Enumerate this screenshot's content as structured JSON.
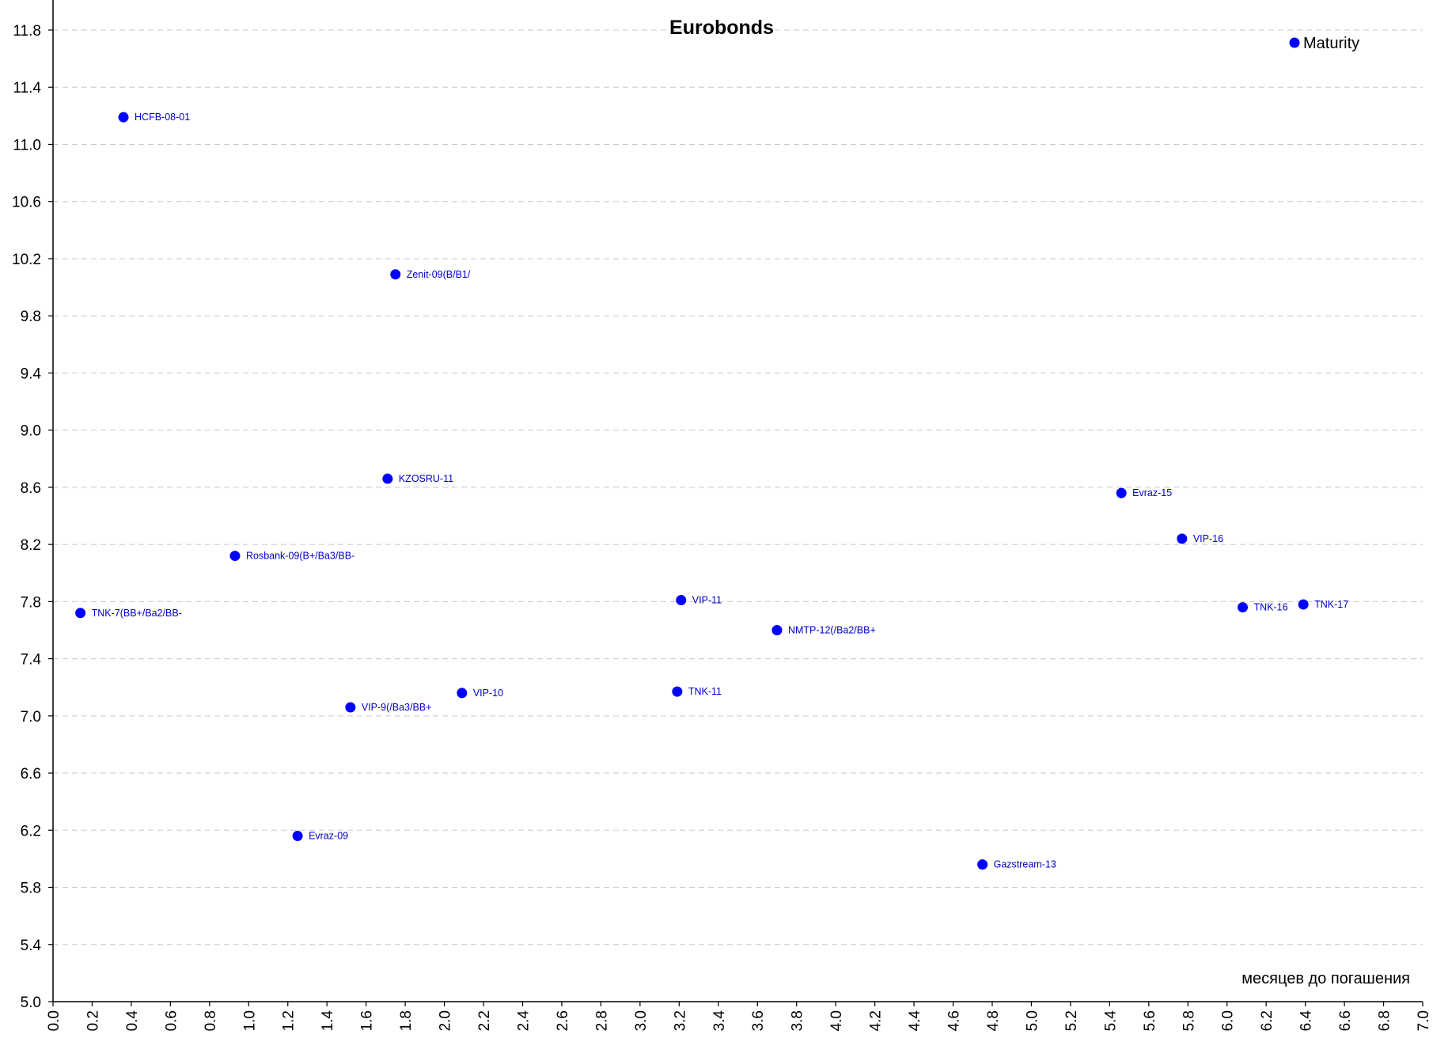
{
  "chart_data": {
    "type": "scatter",
    "title": "Eurobonds",
    "xlabel": "месяцев до погашения",
    "ylabel": "",
    "xlim": [
      0,
      7
    ],
    "ylim": [
      5,
      11.8
    ],
    "x_ticks": [
      "0.0",
      "0.2",
      "0.4",
      "0.6",
      "0.8",
      "1.0",
      "1.2",
      "1.4",
      "1.6",
      "1.8",
      "2.0",
      "2.2",
      "2.4",
      "2.6",
      "2.8",
      "3.0",
      "3.2",
      "3.4",
      "3.6",
      "3.8",
      "4.0",
      "4.2",
      "4.4",
      "4.6",
      "4.8",
      "5.0",
      "5.2",
      "5.4",
      "5.6",
      "5.8",
      "6.0",
      "6.2",
      "6.4",
      "6.6",
      "6.8",
      "7.0"
    ],
    "y_ticks": [
      "5.0",
      "5.4",
      "5.8",
      "6.2",
      "6.6",
      "7.0",
      "7.4",
      "7.8",
      "8.2",
      "8.6",
      "9.0",
      "9.4",
      "9.8",
      "10.2",
      "10.6",
      "11.0",
      "11.4",
      "11.8"
    ],
    "grid": "horizontal dashed",
    "legend": {
      "position": "top-right",
      "entries": [
        "Maturity"
      ]
    },
    "series": [
      {
        "name": "Maturity",
        "color": "#0000ff",
        "points": [
          {
            "label": "HCFB-08-01",
            "x": 0.36,
            "y": 11.19
          },
          {
            "label": "Zenit-09(B/B1/",
            "x": 1.75,
            "y": 10.09
          },
          {
            "label": "KZOSRU-11",
            "x": 1.71,
            "y": 8.66
          },
          {
            "label": "Rosbank-09(B+/Ba3/BB-",
            "x": 0.93,
            "y": 8.12
          },
          {
            "label": "TNK-7(BB+/Ba2/BB-",
            "x": 0.14,
            "y": 7.72
          },
          {
            "label": "VIP-9(/Ba3/BB+",
            "x": 1.52,
            "y": 7.06
          },
          {
            "label": "VIP-10",
            "x": 2.09,
            "y": 7.16
          },
          {
            "label": "Evraz-09",
            "x": 1.25,
            "y": 6.16
          },
          {
            "label": "VIP-11",
            "x": 3.21,
            "y": 7.81
          },
          {
            "label": "TNK-11",
            "x": 3.19,
            "y": 7.17
          },
          {
            "label": "NMTP-12(/Ba2/BB+",
            "x": 3.7,
            "y": 7.6
          },
          {
            "label": "Gazstream-13",
            "x": 4.75,
            "y": 5.96
          },
          {
            "label": "Evraz-15",
            "x": 5.46,
            "y": 8.56
          },
          {
            "label": "VIP-16",
            "x": 5.77,
            "y": 8.24
          },
          {
            "label": "TNK-16",
            "x": 6.08,
            "y": 7.76
          },
          {
            "label": "TNK-17",
            "x": 6.39,
            "y": 7.78
          }
        ]
      }
    ]
  }
}
